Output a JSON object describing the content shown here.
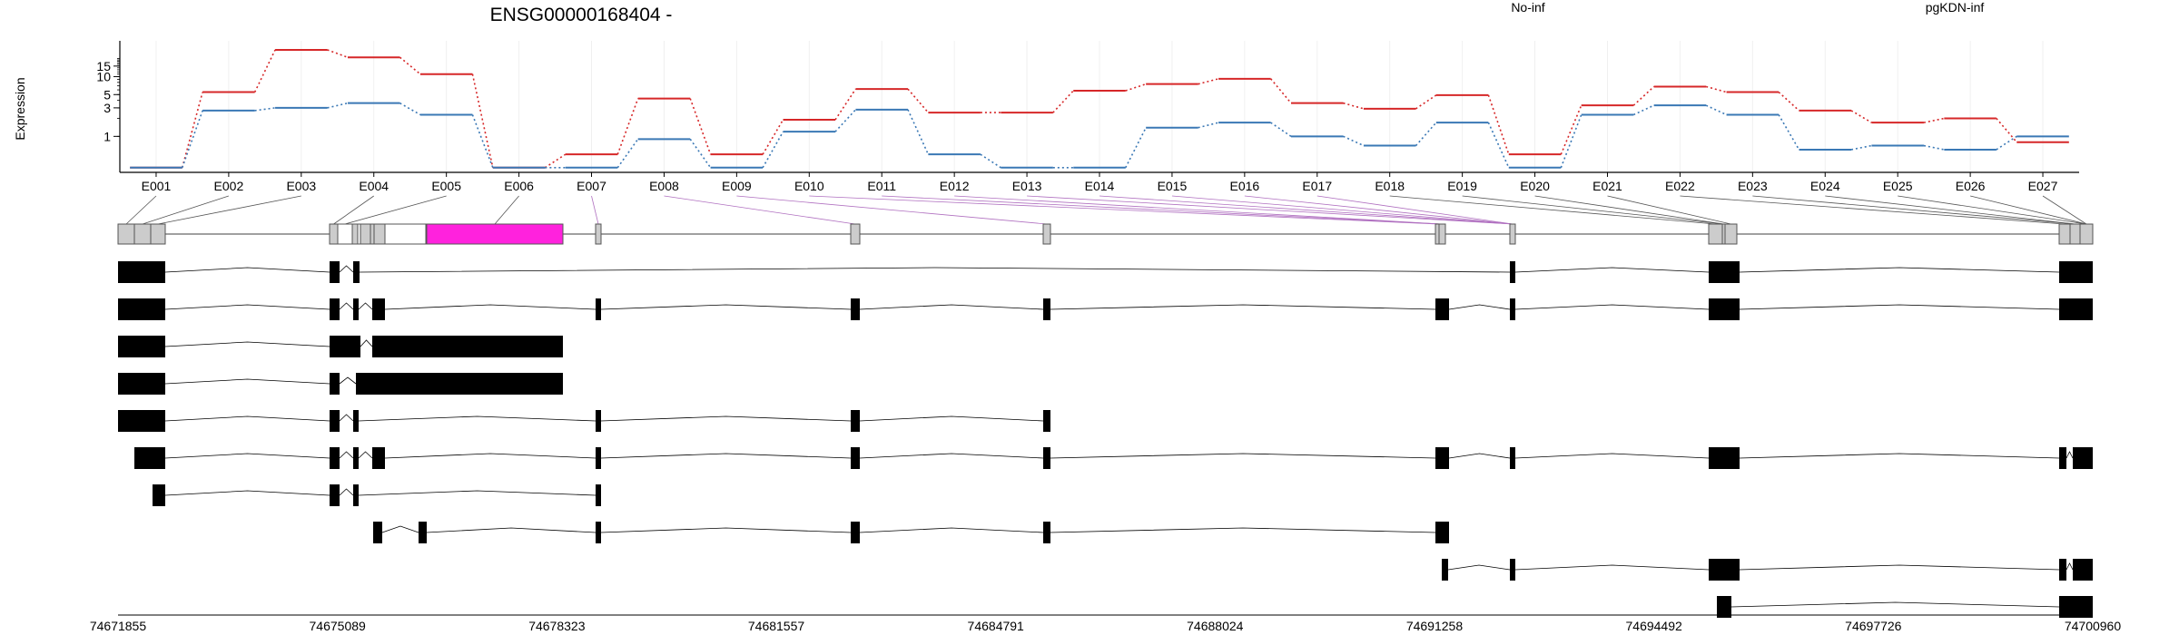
{
  "chart_data": {
    "type": "line",
    "title": "ENSG00000168404 -",
    "ylabel": "Expression",
    "xlabel": "",
    "y_scale": "log",
    "y_ticks": [
      1,
      3,
      5,
      10,
      15
    ],
    "ylim": [
      0.25,
      30
    ],
    "grid": "vertical, light",
    "legend_placement": "top",
    "categories": [
      "E001",
      "E002",
      "E003",
      "E004",
      "E005",
      "E006",
      "E007",
      "E008",
      "E009",
      "E010",
      "E011",
      "E012",
      "E013",
      "E014",
      "E015",
      "E016",
      "E017",
      "E018",
      "E019",
      "E020",
      "E021",
      "E022",
      "E023",
      "E024",
      "E025",
      "E026",
      "E027"
    ],
    "series": [
      {
        "name": "No-inf",
        "color": "#d62728",
        "values": [
          0.3,
          5.5,
          28,
          21,
          11,
          0.3,
          0.5,
          4.3,
          0.5,
          1.9,
          6.2,
          2.5,
          2.5,
          5.8,
          7.5,
          9.2,
          3.6,
          2.9,
          4.9,
          0.5,
          3.3,
          6.8,
          5.5,
          2.7,
          1.7,
          2.0,
          0.8
        ]
      },
      {
        "name": "pgKDN-inf",
        "color": "#3a78b5",
        "values": [
          0.3,
          2.7,
          3.0,
          3.6,
          2.3,
          0.3,
          0.3,
          0.9,
          0.3,
          1.2,
          2.8,
          0.5,
          0.3,
          0.3,
          1.4,
          1.7,
          1.0,
          0.7,
          1.7,
          0.3,
          2.3,
          3.3,
          2.3,
          0.6,
          0.7,
          0.6,
          1.0
        ]
      }
    ],
    "genomic_axis": {
      "min": 74671855,
      "max": 74700960,
      "tick_labels": [
        "74671855",
        "74675089",
        "74678323",
        "74681557",
        "74684791",
        "74688024",
        "74691258",
        "74694492",
        "74697726",
        "74700960"
      ]
    }
  },
  "exon_model": {
    "exon_color": "#cccccc",
    "highlight_color": "#ff22dd",
    "highlighted_exon": "E006"
  }
}
